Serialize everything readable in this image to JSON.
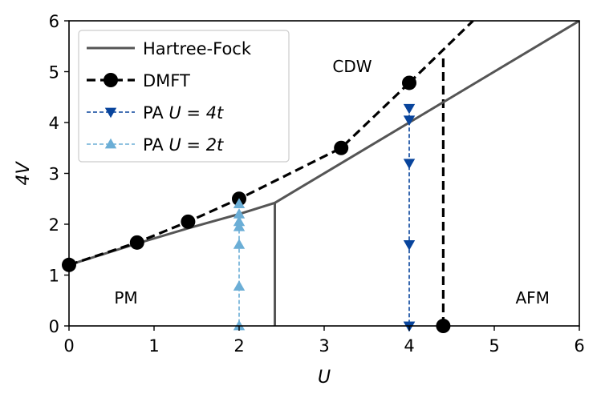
{
  "chart_data": {
    "type": "line",
    "title": "",
    "xlabel": "U",
    "ylabel": "4V",
    "xlim": [
      0,
      6
    ],
    "ylim": [
      0,
      6
    ],
    "xticks": [
      0,
      1,
      2,
      3,
      4,
      5,
      6
    ],
    "yticks": [
      0,
      1,
      2,
      3,
      4,
      5,
      6
    ],
    "grid": false,
    "legend_position": "top-left",
    "series": [
      {
        "name": "Hartree-Fock",
        "legend_label": "Hartree-Fock",
        "style": "solid",
        "color": "#555555",
        "marker": "none",
        "x": [
          0,
          0.8,
          1.4,
          2.0,
          2.42,
          3.2,
          4.0,
          4.4,
          6.0
        ],
        "y": [
          1.2,
          1.62,
          1.92,
          2.2,
          2.42,
          3.2,
          4.0,
          4.4,
          6.0
        ]
      },
      {
        "name": "DMFT",
        "legend_label": "DMFT",
        "style": "dashed",
        "color": "#000000",
        "marker": "circle",
        "x": [
          0,
          0.8,
          1.4,
          2.0,
          3.2,
          4.0
        ],
        "y": [
          1.2,
          1.64,
          2.05,
          2.5,
          3.5,
          4.78
        ]
      },
      {
        "name": "PA U = 4t",
        "legend_prefix": "PA ",
        "legend_math": "U = 4t",
        "style": "dashed",
        "color": "#08449c",
        "marker": "triangle-down",
        "x": [
          4,
          4,
          4,
          4,
          4,
          4
        ],
        "y": [
          4.28,
          4.05,
          3.2,
          1.6,
          0.0,
          0.0
        ]
      },
      {
        "name": "PA U = 2t",
        "legend_prefix": "PA ",
        "legend_math": "U = 2t",
        "style": "dashed",
        "color": "#6baed6",
        "marker": "triangle-up",
        "x": [
          2,
          2,
          2,
          2,
          2,
          2,
          2
        ],
        "y": [
          2.4,
          2.2,
          2.05,
          1.95,
          1.6,
          0.78,
          0.0
        ]
      }
    ],
    "boundaries": [
      {
        "name": "HF PM-AFM boundary",
        "style": "solid",
        "color": "#555555",
        "x": [
          2.42,
          2.42
        ],
        "y": [
          0,
          2.42
        ]
      },
      {
        "name": "DMFT CDW boundary extension",
        "style": "dashed",
        "color": "#000000",
        "x": [
          4.0,
          4.75
        ],
        "y": [
          4.78,
          6.0
        ]
      },
      {
        "name": "DMFT AFM boundary",
        "style": "dashed",
        "color": "#000000",
        "x": [
          4.4,
          4.4
        ],
        "y": [
          0,
          5.3
        ],
        "endpoint_marker": {
          "x": 4.4,
          "y": 0,
          "marker": "circle"
        }
      }
    ],
    "annotations": [
      {
        "text": "CDW",
        "x": 3.33,
        "y": 5.1
      },
      {
        "text": "PM",
        "x": 0.67,
        "y": 0.55
      },
      {
        "text": "AFM",
        "x": 5.45,
        "y": 0.55
      }
    ]
  }
}
